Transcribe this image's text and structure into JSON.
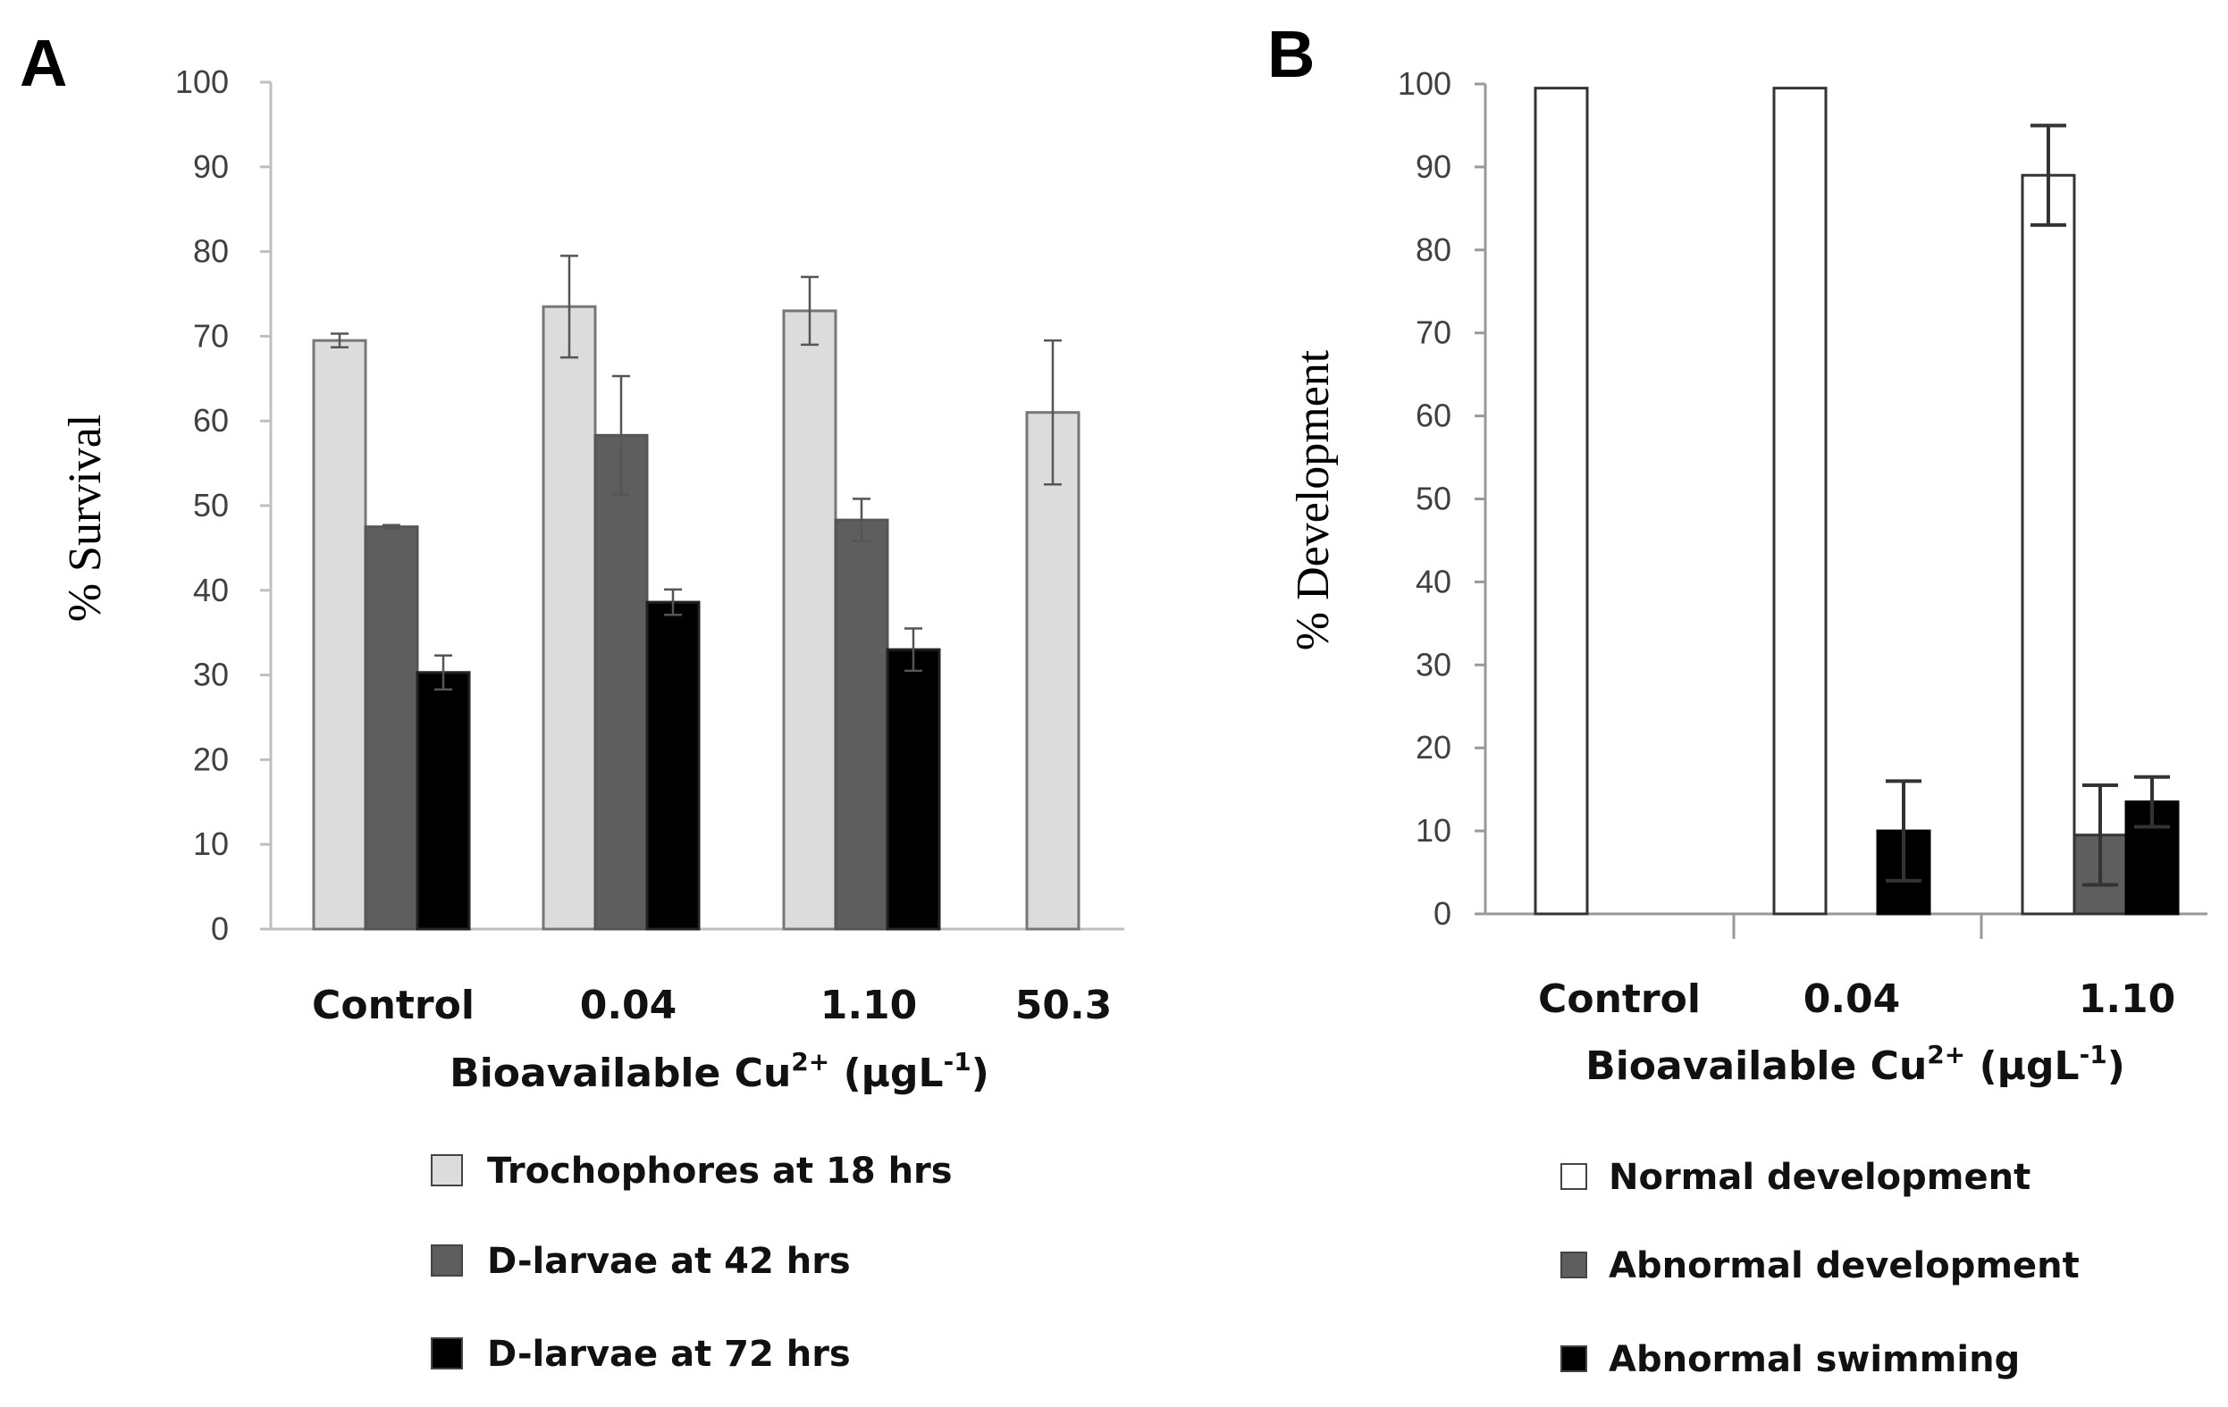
{
  "chart_data": [
    {
      "panel": "A",
      "type": "bar",
      "ylabel": "% Survival",
      "xlabel_parts": [
        "Bioavailable Cu",
        "2+",
        " (μgL",
        "-1",
        ")"
      ],
      "ylim": [
        0,
        100
      ],
      "yticks": [
        0,
        10,
        20,
        30,
        40,
        50,
        60,
        70,
        80,
        90,
        100
      ],
      "categories": [
        "Control",
        "0.04",
        "1.10",
        "50.3"
      ],
      "series": [
        {
          "name": "Trochophores at 18 hrs",
          "color": "#dcdcdc",
          "values": [
            69.5,
            73.5,
            73,
            61
          ],
          "errors": [
            0.8,
            6,
            4,
            8.5
          ]
        },
        {
          "name": "D-larvae at 42 hrs",
          "color": "#5e5e5e",
          "values": [
            47.5,
            58.3,
            48.3,
            null
          ],
          "errors": [
            0.2,
            7,
            2.5,
            null
          ]
        },
        {
          "name": "D-larvae at 72 hrs",
          "color": "#000000",
          "values": [
            30.3,
            38.6,
            33,
            null
          ],
          "errors": [
            2,
            1.5,
            2.5,
            null
          ]
        }
      ],
      "grid": false,
      "legend_position": "bottom"
    },
    {
      "panel": "B",
      "type": "bar",
      "ylabel": "% Development",
      "xlabel_parts": [
        "Bioavailable Cu",
        "2+",
        " (μgL",
        "-1",
        ")"
      ],
      "ylim": [
        0,
        100
      ],
      "yticks": [
        0,
        10,
        20,
        30,
        40,
        50,
        60,
        70,
        80,
        90,
        100
      ],
      "categories": [
        "Control",
        "0.04",
        "1.10"
      ],
      "series": [
        {
          "name": "Normal development",
          "color": "#ffffff",
          "values": [
            99.5,
            99.5,
            89
          ],
          "errors": [
            null,
            null,
            6
          ]
        },
        {
          "name": "Abnormal development",
          "color": "#5e5e5e",
          "values": [
            null,
            null,
            9.5
          ],
          "errors": [
            null,
            null,
            6
          ]
        },
        {
          "name": "Abnormal swimming",
          "color": "#000000",
          "values": [
            null,
            10,
            13.5
          ],
          "errors": [
            null,
            6,
            3
          ]
        }
      ],
      "grid": false,
      "legend_position": "bottom"
    }
  ]
}
